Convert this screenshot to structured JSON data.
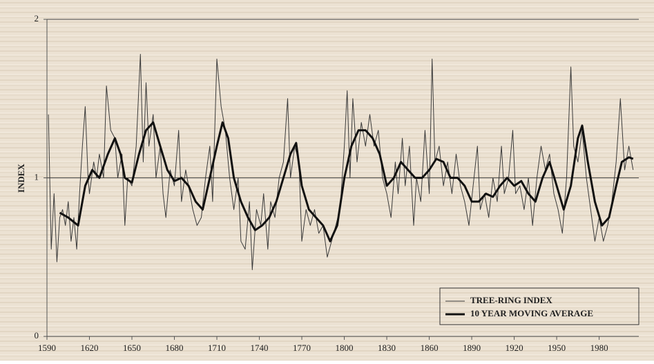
{
  "chart_data": {
    "type": "line",
    "ylabel": "INDEX",
    "xlim": [
      1590,
      2008
    ],
    "xticks": [
      1590,
      1620,
      1650,
      1680,
      1710,
      1740,
      1770,
      1800,
      1830,
      1860,
      1890,
      1920,
      1950,
      1980
    ],
    "ylim": [
      0,
      2
    ],
    "yticks": [
      0,
      1,
      2
    ],
    "grid": true,
    "legend": "lower right",
    "series": [
      {
        "name": "TREE-RING INDEX",
        "color": "#3a3a3a",
        "x": [
          1591,
          1593,
          1595,
          1597,
          1599,
          1601,
          1603,
          1605,
          1607,
          1609,
          1611,
          1613,
          1615,
          1617,
          1619,
          1620,
          1623,
          1625,
          1627,
          1630,
          1632,
          1635,
          1638,
          1640,
          1643,
          1645,
          1647,
          1650,
          1653,
          1656,
          1658,
          1660,
          1662,
          1665,
          1667,
          1670,
          1672,
          1674,
          1677,
          1680,
          1683,
          1685,
          1688,
          1690,
          1693,
          1696,
          1699,
          1702,
          1705,
          1707,
          1710,
          1713,
          1716,
          1719,
          1722,
          1725,
          1727,
          1730,
          1733,
          1735,
          1738,
          1741,
          1743,
          1746,
          1748,
          1751,
          1754,
          1757,
          1760,
          1762,
          1765,
          1768,
          1770,
          1773,
          1776,
          1779,
          1782,
          1785,
          1788,
          1791,
          1794,
          1797,
          1800,
          1802,
          1804,
          1806,
          1809,
          1812,
          1815,
          1818,
          1821,
          1824,
          1827,
          1830,
          1833,
          1836,
          1838,
          1841,
          1843,
          1846,
          1849,
          1851,
          1854,
          1857,
          1860,
          1862,
          1864,
          1867,
          1870,
          1873,
          1876,
          1879,
          1882,
          1885,
          1888,
          1891,
          1894,
          1896,
          1899,
          1902,
          1905,
          1908,
          1911,
          1913,
          1916,
          1919,
          1921,
          1924,
          1927,
          1930,
          1933,
          1936,
          1939,
          1942,
          1945,
          1948,
          1951,
          1954,
          1957,
          1960,
          1962,
          1965,
          1968,
          1971,
          1974,
          1977,
          1980,
          1983,
          1986,
          1989,
          1992,
          1995,
          1998,
          2001,
          2004
        ],
        "values": [
          1.4,
          0.55,
          0.9,
          0.47,
          0.75,
          0.8,
          0.7,
          0.85,
          0.6,
          0.75,
          0.55,
          0.9,
          1.2,
          1.45,
          1.0,
          0.9,
          1.1,
          1.0,
          1.15,
          1.0,
          1.58,
          1.3,
          1.25,
          1.0,
          1.15,
          0.7,
          1.0,
          0.95,
          1.2,
          1.78,
          1.1,
          1.6,
          1.2,
          1.4,
          1.0,
          1.2,
          0.9,
          0.75,
          1.05,
          0.95,
          1.3,
          0.85,
          1.05,
          0.95,
          0.8,
          0.7,
          0.75,
          1.0,
          1.2,
          0.85,
          1.75,
          1.45,
          1.3,
          1.0,
          0.8,
          1.0,
          0.6,
          0.55,
          0.85,
          0.42,
          0.8,
          0.7,
          0.9,
          0.55,
          0.85,
          0.75,
          1.0,
          1.1,
          1.5,
          1.0,
          1.2,
          1.1,
          0.6,
          0.8,
          0.7,
          0.8,
          0.65,
          0.7,
          0.5,
          0.6,
          0.7,
          0.8,
          1.2,
          1.55,
          1.0,
          1.5,
          1.1,
          1.35,
          1.2,
          1.4,
          1.2,
          1.3,
          1.0,
          0.9,
          0.75,
          1.1,
          0.9,
          1.25,
          0.95,
          1.2,
          0.7,
          1.0,
          0.85,
          1.3,
          0.9,
          1.75,
          1.1,
          1.2,
          0.95,
          1.1,
          0.9,
          1.15,
          0.95,
          0.85,
          0.7,
          0.95,
          1.2,
          0.8,
          0.9,
          0.75,
          1.0,
          0.85,
          1.2,
          0.9,
          1.0,
          1.3,
          0.9,
          0.95,
          0.8,
          1.0,
          0.7,
          1.0,
          1.2,
          1.05,
          1.15,
          0.9,
          0.8,
          0.65,
          1.0,
          1.7,
          1.2,
          1.1,
          1.3,
          1.0,
          0.8,
          0.6,
          0.75,
          0.6,
          0.7,
          0.85,
          1.1,
          1.5,
          1.05,
          1.2,
          1.05
        ]
      },
      {
        "name": "10 YEAR MOVING AVERAGE",
        "color": "#111111",
        "x": [
          1599,
          1605,
          1612,
          1617,
          1622,
          1627,
          1633,
          1638,
          1642,
          1645,
          1650,
          1655,
          1660,
          1665,
          1670,
          1675,
          1680,
          1685,
          1690,
          1695,
          1700,
          1705,
          1710,
          1714,
          1718,
          1722,
          1727,
          1732,
          1737,
          1742,
          1747,
          1752,
          1757,
          1762,
          1766,
          1770,
          1775,
          1780,
          1785,
          1790,
          1795,
          1800,
          1805,
          1810,
          1815,
          1820,
          1825,
          1830,
          1835,
          1840,
          1845,
          1850,
          1855,
          1860,
          1865,
          1870,
          1875,
          1880,
          1885,
          1890,
          1895,
          1900,
          1905,
          1910,
          1915,
          1920,
          1925,
          1930,
          1935,
          1940,
          1945,
          1950,
          1955,
          1960,
          1965,
          1968,
          1972,
          1977,
          1982,
          1987,
          1992,
          1996,
          2001,
          2004
        ],
        "values": [
          0.78,
          0.75,
          0.7,
          0.95,
          1.05,
          1.0,
          1.15,
          1.25,
          1.15,
          1.0,
          0.97,
          1.15,
          1.3,
          1.35,
          1.2,
          1.05,
          0.98,
          1.0,
          0.95,
          0.85,
          0.8,
          1.0,
          1.2,
          1.35,
          1.25,
          1.0,
          0.85,
          0.75,
          0.67,
          0.7,
          0.75,
          0.85,
          1.0,
          1.15,
          1.22,
          0.95,
          0.8,
          0.75,
          0.7,
          0.6,
          0.7,
          1.0,
          1.2,
          1.3,
          1.3,
          1.25,
          1.15,
          0.95,
          1.0,
          1.1,
          1.05,
          1.0,
          1.0,
          1.05,
          1.12,
          1.1,
          1.0,
          1.0,
          0.95,
          0.85,
          0.85,
          0.9,
          0.88,
          0.95,
          1.0,
          0.95,
          0.98,
          0.9,
          0.85,
          1.0,
          1.1,
          0.95,
          0.8,
          0.95,
          1.25,
          1.33,
          1.1,
          0.85,
          0.7,
          0.75,
          0.95,
          1.1,
          1.13,
          1.12
        ]
      }
    ]
  }
}
